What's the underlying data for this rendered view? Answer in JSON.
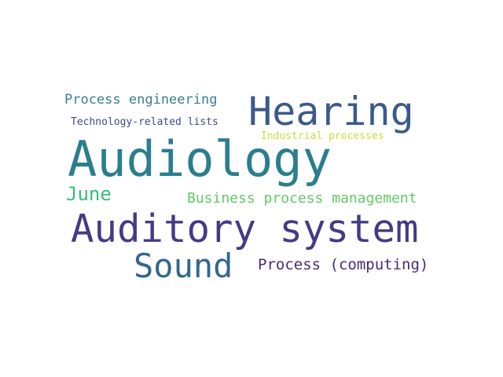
{
  "words": [
    {
      "text": "Process engineering",
      "color": "#3a7e8e"
    },
    {
      "text": "Hearing",
      "color": "#3b5a8b"
    },
    {
      "text": "Technology-related lists",
      "color": "#3d4b8a"
    },
    {
      "text": "Industrial processes",
      "color": "#c9dc3c"
    },
    {
      "text": "Audiology",
      "color": "#2a7e8e"
    },
    {
      "text": "June",
      "color": "#3bbb7a"
    },
    {
      "text": "Business process management",
      "color": "#62c86a"
    },
    {
      "text": "Auditory system",
      "color": "#433b85"
    },
    {
      "text": "Sound",
      "color": "#31678e"
    },
    {
      "text": "Process (computing)",
      "color": "#4b2a72"
    }
  ]
}
